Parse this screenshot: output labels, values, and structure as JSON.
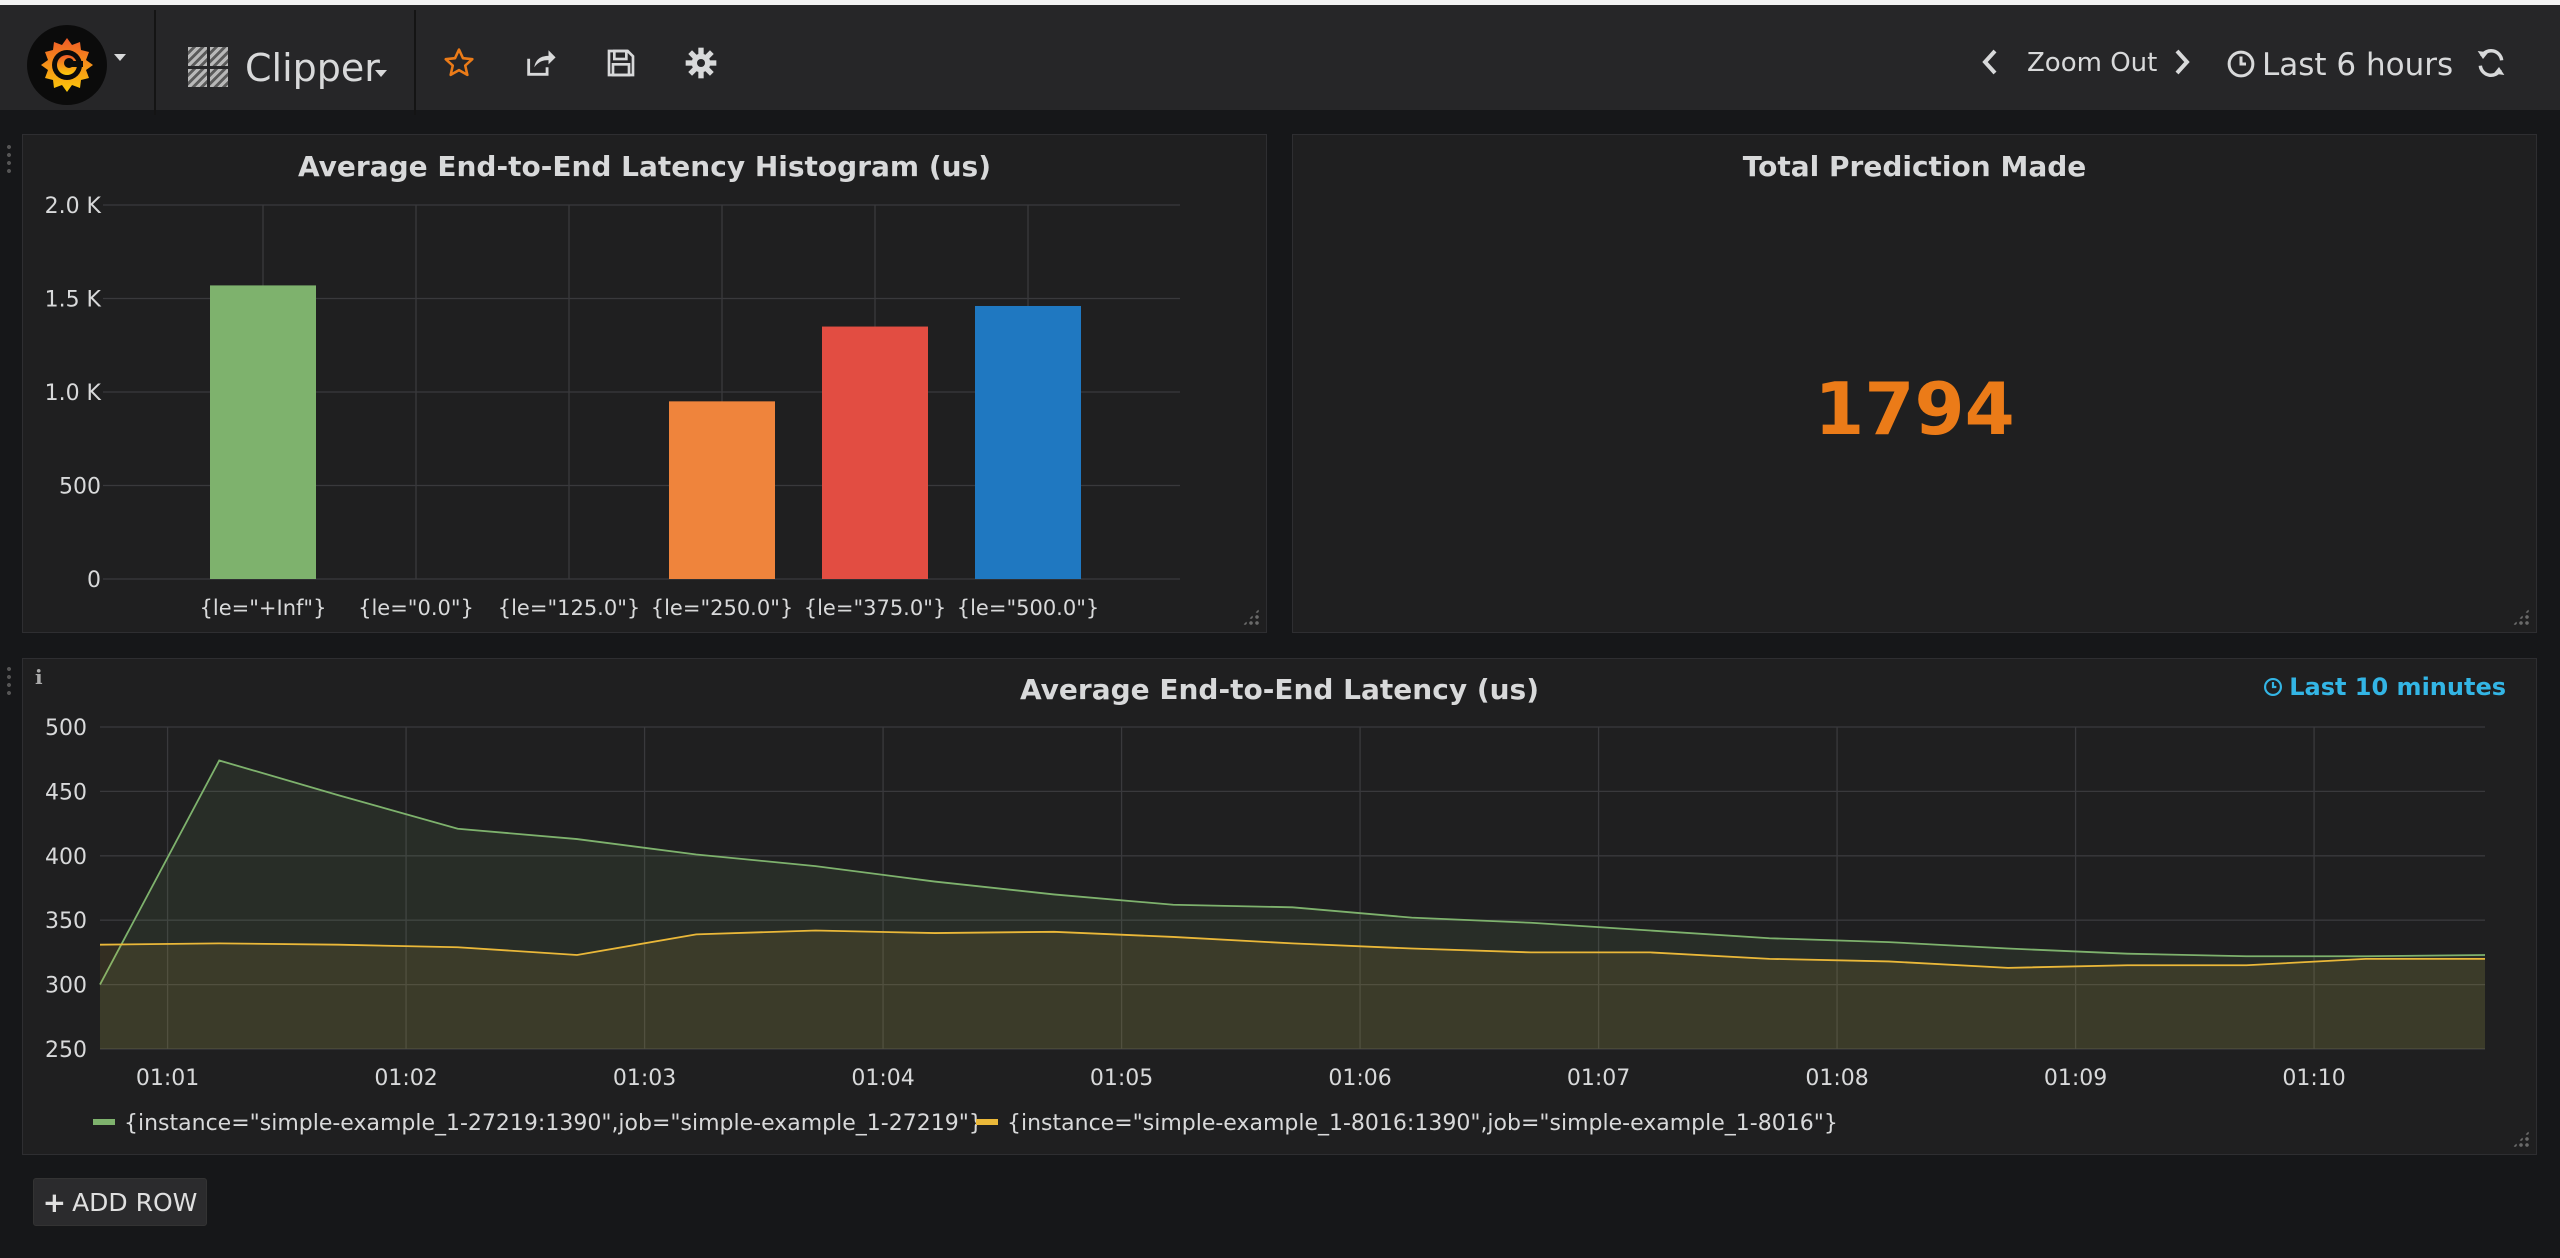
{
  "topbar": {
    "dashboard_title": "Clipper",
    "zoom_out_label": "Zoom Out",
    "time_range_label": "Last 6 hours"
  },
  "histogram_panel": {
    "title": "Average End-to-End Latency Histogram (us)"
  },
  "stat_panel": {
    "title": "Total Prediction Made",
    "value": "1794",
    "value_color": "#eb7b18"
  },
  "latency_panel": {
    "title": "Average End-to-End Latency (us)",
    "time_override": "Last 10 minutes",
    "legend": [
      {
        "label": "{instance=\"simple-example_1-27219:1390\",job=\"simple-example_1-27219\"}",
        "color": "#7eb26d"
      },
      {
        "label": "{instance=\"simple-example_1-8016:1390\",job=\"simple-example_1-8016\"}",
        "color": "#eab839"
      }
    ]
  },
  "add_row_label": "ADD ROW",
  "chart_data": [
    {
      "type": "bar",
      "title": "Average End-to-End Latency Histogram (us)",
      "categories": [
        "{le=\"+Inf\"}",
        "{le=\"0.0\"}",
        "{le=\"125.0\"}",
        "{le=\"250.0\"}",
        "{le=\"375.0\"}",
        "{le=\"500.0\"}"
      ],
      "values": [
        1570,
        0,
        0,
        950,
        1350,
        1460
      ],
      "colors": [
        "#7eb26d",
        "#eab839",
        "#6ed0e0",
        "#ef843c",
        "#e24d42",
        "#1f78c1"
      ],
      "yticks": [
        "0",
        "500",
        "1.0 K",
        "1.5 K",
        "2.0 K"
      ],
      "ylim": [
        0,
        2000
      ],
      "grid": true
    },
    {
      "type": "area",
      "title": "Average End-to-End Latency (us)",
      "xticks": [
        "01:01",
        "01:02",
        "01:03",
        "01:04",
        "01:05",
        "01:06",
        "01:07",
        "01:08",
        "01:09",
        "01:10"
      ],
      "xlim": [
        "01:00:43",
        "01:10:43"
      ],
      "ylim": [
        250,
        500
      ],
      "yticks": [
        "250",
        "300",
        "350",
        "400",
        "450",
        "500"
      ],
      "grid": true,
      "series": [
        {
          "name": "{instance=\"simple-example_1-27219:1390\",job=\"simple-example_1-27219\"}",
          "color": "#7eb26d",
          "x": [
            "01:00:43",
            "01:01:13",
            "01:01:43",
            "01:02:13",
            "01:02:43",
            "01:03:13",
            "01:03:43",
            "01:04:13",
            "01:04:43",
            "01:05:13",
            "01:05:43",
            "01:06:13",
            "01:06:43",
            "01:07:13",
            "01:07:43",
            "01:08:13",
            "01:08:43",
            "01:09:13",
            "01:09:43",
            "01:10:13",
            "01:10:43"
          ],
          "y": [
            300,
            474,
            447,
            421,
            413,
            401,
            392,
            380,
            370,
            362,
            360,
            352,
            348,
            342,
            336,
            333,
            328,
            324,
            322,
            322,
            323
          ]
        },
        {
          "name": "{instance=\"simple-example_1-8016:1390\",job=\"simple-example_1-8016\"}",
          "color": "#eab839",
          "x": [
            "01:00:43",
            "01:01:13",
            "01:01:43",
            "01:02:13",
            "01:02:43",
            "01:03:13",
            "01:03:43",
            "01:04:13",
            "01:04:43",
            "01:05:13",
            "01:05:43",
            "01:06:13",
            "01:06:43",
            "01:07:13",
            "01:07:43",
            "01:08:13",
            "01:08:43",
            "01:09:13",
            "01:09:43",
            "01:10:13",
            "01:10:43"
          ],
          "y": [
            331,
            332,
            331,
            329,
            323,
            339,
            342,
            340,
            341,
            337,
            332,
            328,
            325,
            325,
            320,
            318,
            313,
            315,
            315,
            320,
            320
          ]
        }
      ]
    }
  ]
}
